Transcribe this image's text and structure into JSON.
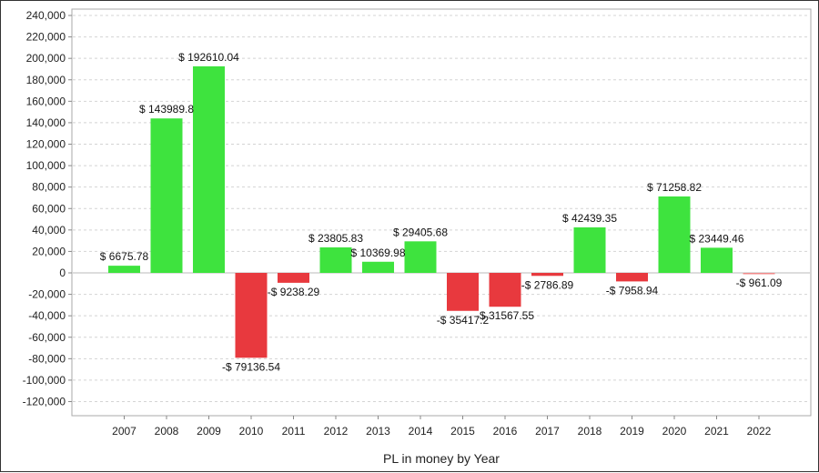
{
  "chart_data": {
    "type": "bar",
    "xlabel": "PL in money by Year",
    "ylabel": "",
    "categories": [
      "2007",
      "2008",
      "2009",
      "2010",
      "2011",
      "2012",
      "2013",
      "2014",
      "2015",
      "2016",
      "2017",
      "2018",
      "2019",
      "2020",
      "2021",
      "2022"
    ],
    "values": [
      6675.78,
      143989.8,
      192610.04,
      -79136.54,
      -9238.29,
      23805.83,
      10369.98,
      29405.68,
      -35417.2,
      -31567.55,
      -2786.89,
      42439.35,
      -7958.94,
      71258.82,
      23449.46,
      -961.09
    ],
    "data_labels": [
      "$ 6675.78",
      "$ 143989.8",
      "$ 192610.04",
      "-$ 79136.54",
      "-$ 9238.29",
      "$ 23805.83",
      "$ 10369.98",
      "$ 29405.68",
      "-$ 35417.2",
      "-$ 31567.55",
      "-$ 2786.89",
      "$ 42439.35",
      "-$ 7958.94",
      "$ 71258.82",
      "$ 23449.46",
      "-$ 961.09"
    ],
    "ylim": [
      -130000,
      240000
    ],
    "yticks": [
      240000,
      220000,
      200000,
      180000,
      160000,
      140000,
      120000,
      100000,
      80000,
      60000,
      40000,
      20000,
      0,
      -20000,
      -40000,
      -60000,
      -80000,
      -100000,
      -120000
    ],
    "ytick_labels": [
      "240,000",
      "220,000",
      "200,000",
      "180,000",
      "160,000",
      "140,000",
      "120,000",
      "100,000",
      "80,000",
      "60,000",
      "40,000",
      "20,000",
      "0",
      "-20,000",
      "-40,000",
      "-60,000",
      "-80,000",
      "-100,000",
      "-120,000"
    ],
    "grid": true,
    "colors": {
      "positive": "#3ee33e",
      "negative": "#e8393e",
      "small_negative": "#f08a8a"
    }
  }
}
